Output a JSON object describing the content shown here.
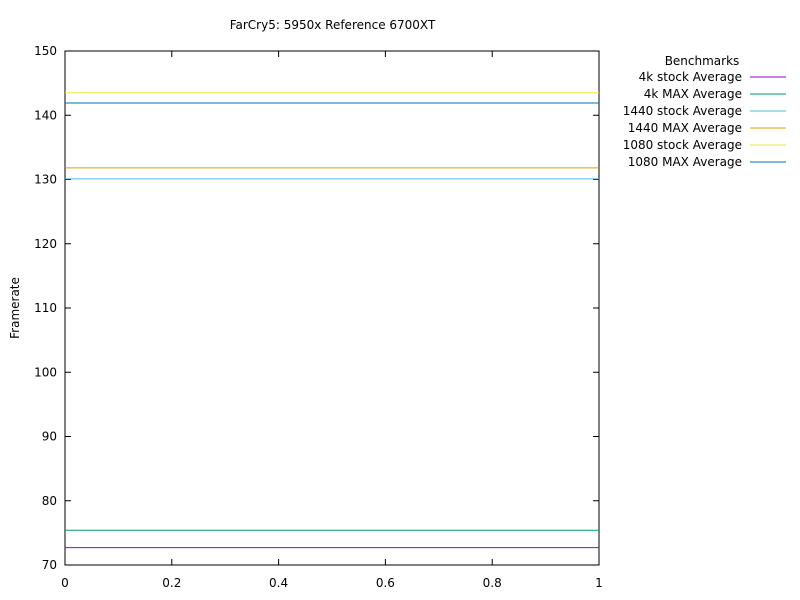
{
  "chart_data": {
    "type": "line",
    "title": "FarCry5: 5950x Reference 6700XT",
    "xlabel": "",
    "ylabel": "Framerate",
    "xlim": [
      0,
      1
    ],
    "ylim": [
      70,
      150
    ],
    "x_ticks": [
      "0",
      "0.2",
      "0.4",
      "0.6",
      "0.8",
      "1"
    ],
    "y_ticks": [
      "70",
      "80",
      "90",
      "100",
      "110",
      "120",
      "130",
      "140",
      "150"
    ],
    "grid": false,
    "legend": {
      "title": "Benchmarks",
      "placement": "outside-top-right"
    },
    "series": [
      {
        "name": "4k stock Average",
        "color": "#9400d3",
        "x": [
          0,
          1
        ],
        "y": [
          72.7,
          72.7
        ]
      },
      {
        "name": "4k MAX Average",
        "color": "#009e73",
        "x": [
          0,
          1
        ],
        "y": [
          75.4,
          75.4
        ]
      },
      {
        "name": "1440 stock Average",
        "color": "#56b4e9",
        "x": [
          0,
          1
        ],
        "y": [
          130.1,
          130.1
        ]
      },
      {
        "name": "1440 MAX Average",
        "color": "#e69f00",
        "x": [
          0,
          1
        ],
        "y": [
          131.8,
          131.8
        ]
      },
      {
        "name": "1080 stock Average",
        "color": "#f0e442",
        "x": [
          0,
          1
        ],
        "y": [
          143.5,
          143.5
        ]
      },
      {
        "name": "1080 MAX Average",
        "color": "#0072b2",
        "x": [
          0,
          1
        ],
        "y": [
          141.9,
          141.9
        ]
      }
    ]
  }
}
